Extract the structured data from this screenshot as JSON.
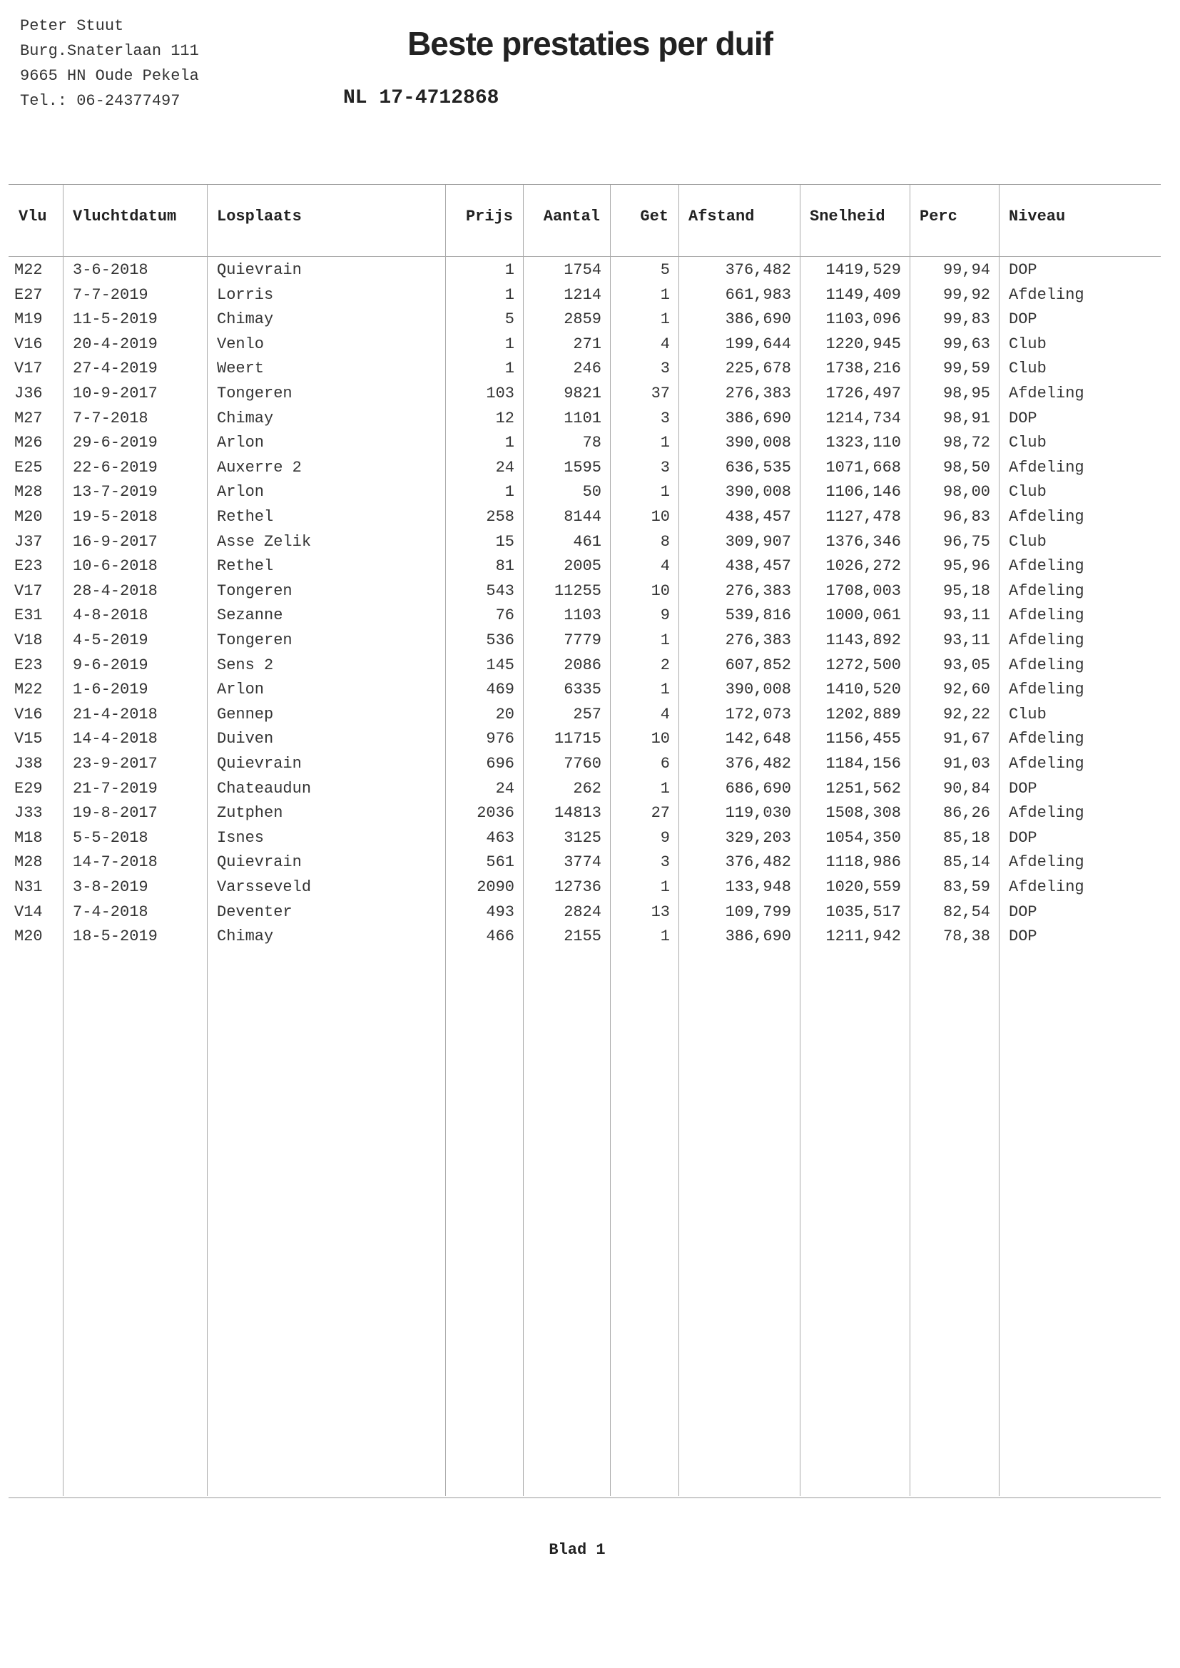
{
  "sender": {
    "name": "Peter Stuut",
    "street": "Burg.Snaterlaan 111",
    "city": "9665 HN  Oude Pekela",
    "phone": "Tel.: 06-24377497"
  },
  "title": "Beste prestaties per duif",
  "ring_number": "NL 17-4712868",
  "table": {
    "columns": [
      "Vlu",
      "Vluchtdatum",
      "Losplaats",
      "Prijs",
      "Aantal",
      "Get",
      "Afstand",
      "Snelheid",
      "Perc",
      "Niveau"
    ],
    "rows": [
      [
        "M22",
        "3-6-2018",
        "Quievrain",
        "1",
        "1754",
        "5",
        "376,482",
        "1419,529",
        "99,94",
        "DOP"
      ],
      [
        "E27",
        "7-7-2019",
        "Lorris",
        "1",
        "1214",
        "1",
        "661,983",
        "1149,409",
        "99,92",
        "Afdeling"
      ],
      [
        "M19",
        "11-5-2019",
        "Chimay",
        "5",
        "2859",
        "1",
        "386,690",
        "1103,096",
        "99,83",
        "DOP"
      ],
      [
        "V16",
        "20-4-2019",
        "Venlo",
        "1",
        "271",
        "4",
        "199,644",
        "1220,945",
        "99,63",
        "Club"
      ],
      [
        "V17",
        "27-4-2019",
        "Weert",
        "1",
        "246",
        "3",
        "225,678",
        "1738,216",
        "99,59",
        "Club"
      ],
      [
        "J36",
        "10-9-2017",
        "Tongeren",
        "103",
        "9821",
        "37",
        "276,383",
        "1726,497",
        "98,95",
        "Afdeling"
      ],
      [
        "M27",
        "7-7-2018",
        "Chimay",
        "12",
        "1101",
        "3",
        "386,690",
        "1214,734",
        "98,91",
        "DOP"
      ],
      [
        "M26",
        "29-6-2019",
        "Arlon",
        "1",
        "78",
        "1",
        "390,008",
        "1323,110",
        "98,72",
        "Club"
      ],
      [
        "E25",
        "22-6-2019",
        "Auxerre 2",
        "24",
        "1595",
        "3",
        "636,535",
        "1071,668",
        "98,50",
        "Afdeling"
      ],
      [
        "M28",
        "13-7-2019",
        "Arlon",
        "1",
        "50",
        "1",
        "390,008",
        "1106,146",
        "98,00",
        "Club"
      ],
      [
        "M20",
        "19-5-2018",
        "Rethel",
        "258",
        "8144",
        "10",
        "438,457",
        "1127,478",
        "96,83",
        "Afdeling"
      ],
      [
        "J37",
        "16-9-2017",
        "Asse Zelik",
        "15",
        "461",
        "8",
        "309,907",
        "1376,346",
        "96,75",
        "Club"
      ],
      [
        "E23",
        "10-6-2018",
        "Rethel",
        "81",
        "2005",
        "4",
        "438,457",
        "1026,272",
        "95,96",
        "Afdeling"
      ],
      [
        "V17",
        "28-4-2018",
        "Tongeren",
        "543",
        "11255",
        "10",
        "276,383",
        "1708,003",
        "95,18",
        "Afdeling"
      ],
      [
        "E31",
        "4-8-2018",
        "Sezanne",
        "76",
        "1103",
        "9",
        "539,816",
        "1000,061",
        "93,11",
        "Afdeling"
      ],
      [
        "V18",
        "4-5-2019",
        "Tongeren",
        "536",
        "7779",
        "1",
        "276,383",
        "1143,892",
        "93,11",
        "Afdeling"
      ],
      [
        "E23",
        "9-6-2019",
        "Sens 2",
        "145",
        "2086",
        "2",
        "607,852",
        "1272,500",
        "93,05",
        "Afdeling"
      ],
      [
        "M22",
        "1-6-2019",
        "Arlon",
        "469",
        "6335",
        "1",
        "390,008",
        "1410,520",
        "92,60",
        "Afdeling"
      ],
      [
        "V16",
        "21-4-2018",
        "Gennep",
        "20",
        "257",
        "4",
        "172,073",
        "1202,889",
        "92,22",
        "Club"
      ],
      [
        "V15",
        "14-4-2018",
        "Duiven",
        "976",
        "11715",
        "10",
        "142,648",
        "1156,455",
        "91,67",
        "Afdeling"
      ],
      [
        "J38",
        "23-9-2017",
        "Quievrain",
        "696",
        "7760",
        "6",
        "376,482",
        "1184,156",
        "91,03",
        "Afdeling"
      ],
      [
        "E29",
        "21-7-2019",
        "Chateaudun",
        "24",
        "262",
        "1",
        "686,690",
        "1251,562",
        "90,84",
        "DOP"
      ],
      [
        "J33",
        "19-8-2017",
        "Zutphen",
        "2036",
        "14813",
        "27",
        "119,030",
        "1508,308",
        "86,26",
        "Afdeling"
      ],
      [
        "M18",
        "5-5-2018",
        "Isnes",
        "463",
        "3125",
        "9",
        "329,203",
        "1054,350",
        "85,18",
        "DOP"
      ],
      [
        "M28",
        "14-7-2018",
        "Quievrain",
        "561",
        "3774",
        "3",
        "376,482",
        "1118,986",
        "85,14",
        "Afdeling"
      ],
      [
        "N31",
        "3-8-2019",
        "Varsseveld",
        "2090",
        "12736",
        "1",
        "133,948",
        "1020,559",
        "83,59",
        "Afdeling"
      ],
      [
        "V14",
        "7-4-2018",
        "Deventer",
        "493",
        "2824",
        "13",
        "109,799",
        "1035,517",
        "82,54",
        "DOP"
      ],
      [
        "M20",
        "18-5-2019",
        "Chimay",
        "466",
        "2155",
        "1",
        "386,690",
        "1211,942",
        "78,38",
        "DOP"
      ]
    ]
  },
  "footer": {
    "page_label": "Blad 1"
  }
}
